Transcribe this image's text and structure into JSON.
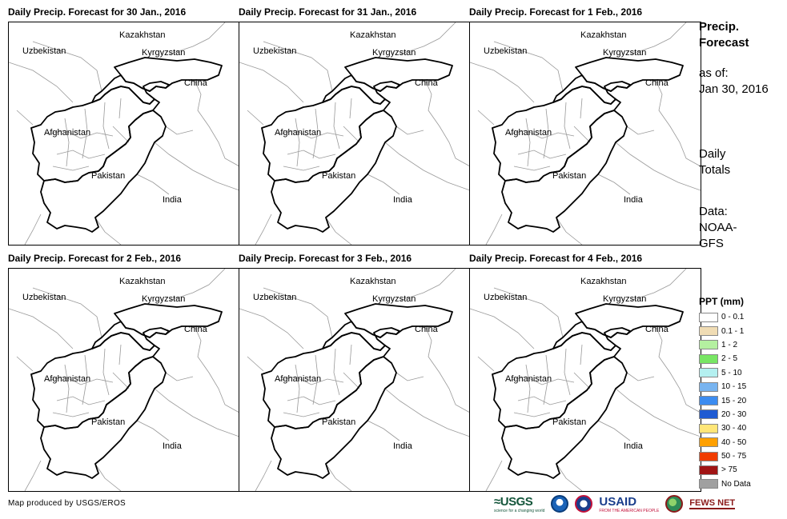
{
  "panels": [
    {
      "title": "Daily Precip. Forecast for 30 Jan., 2016"
    },
    {
      "title": "Daily Precip. Forecast for 31 Jan., 2016"
    },
    {
      "title": "Daily Precip. Forecast for 1 Feb., 2016"
    },
    {
      "title": "Daily Precip. Forecast for 2 Feb., 2016"
    },
    {
      "title": "Daily Precip. Forecast for 3 Feb., 2016"
    },
    {
      "title": "Daily Precip. Forecast for 4 Feb., 2016"
    }
  ],
  "map_labels": {
    "kazakhstan": "Kazakhstan",
    "uzbekistan": "Uzbekistan",
    "kyrgyzstan": "Kyrgyzstan",
    "china": "China",
    "afghanistan": "Afghanistan",
    "pakistan": "Pakistan",
    "india": "India"
  },
  "sidebar": {
    "title_line1": "Precip.",
    "title_line2": "Forecast",
    "asof_line1": "as of:",
    "asof_line2": "Jan 30, 2016",
    "daily_line1": "Daily",
    "daily_line2": "Totals",
    "data_line1": "Data:",
    "data_line2": "NOAA-",
    "data_line3": "GFS"
  },
  "legend": {
    "title": "PPT (mm)",
    "items": [
      {
        "label": "0 - 0.1",
        "color": "#ffffff"
      },
      {
        "label": "0.1 - 1",
        "color": "#f0dcb4"
      },
      {
        "label": "1 - 2",
        "color": "#b4f0a0"
      },
      {
        "label": "2 - 5",
        "color": "#78e664"
      },
      {
        "label": "5 - 10",
        "color": "#b4f0f0"
      },
      {
        "label": "10 - 15",
        "color": "#78b4f0"
      },
      {
        "label": "15 - 20",
        "color": "#3c8cf0"
      },
      {
        "label": "20 - 30",
        "color": "#1e5ad2"
      },
      {
        "label": "30 - 40",
        "color": "#ffe678"
      },
      {
        "label": "40 - 50",
        "color": "#ffa000"
      },
      {
        "label": "50 - 75",
        "color": "#f03c00"
      },
      {
        "label": "> 75",
        "color": "#a01414"
      },
      {
        "label": "No Data",
        "color": "#a0a0a0"
      }
    ]
  },
  "footer": {
    "credit": "Map produced by USGS/EROS",
    "logo_usgs": "≈USGS",
    "logo_usgs_sub": "science for a changing world",
    "logo_usaid": "USAID",
    "logo_usaid_sub": "FROM THE AMERICAN PEOPLE",
    "logo_fews": "FEWS NET"
  }
}
